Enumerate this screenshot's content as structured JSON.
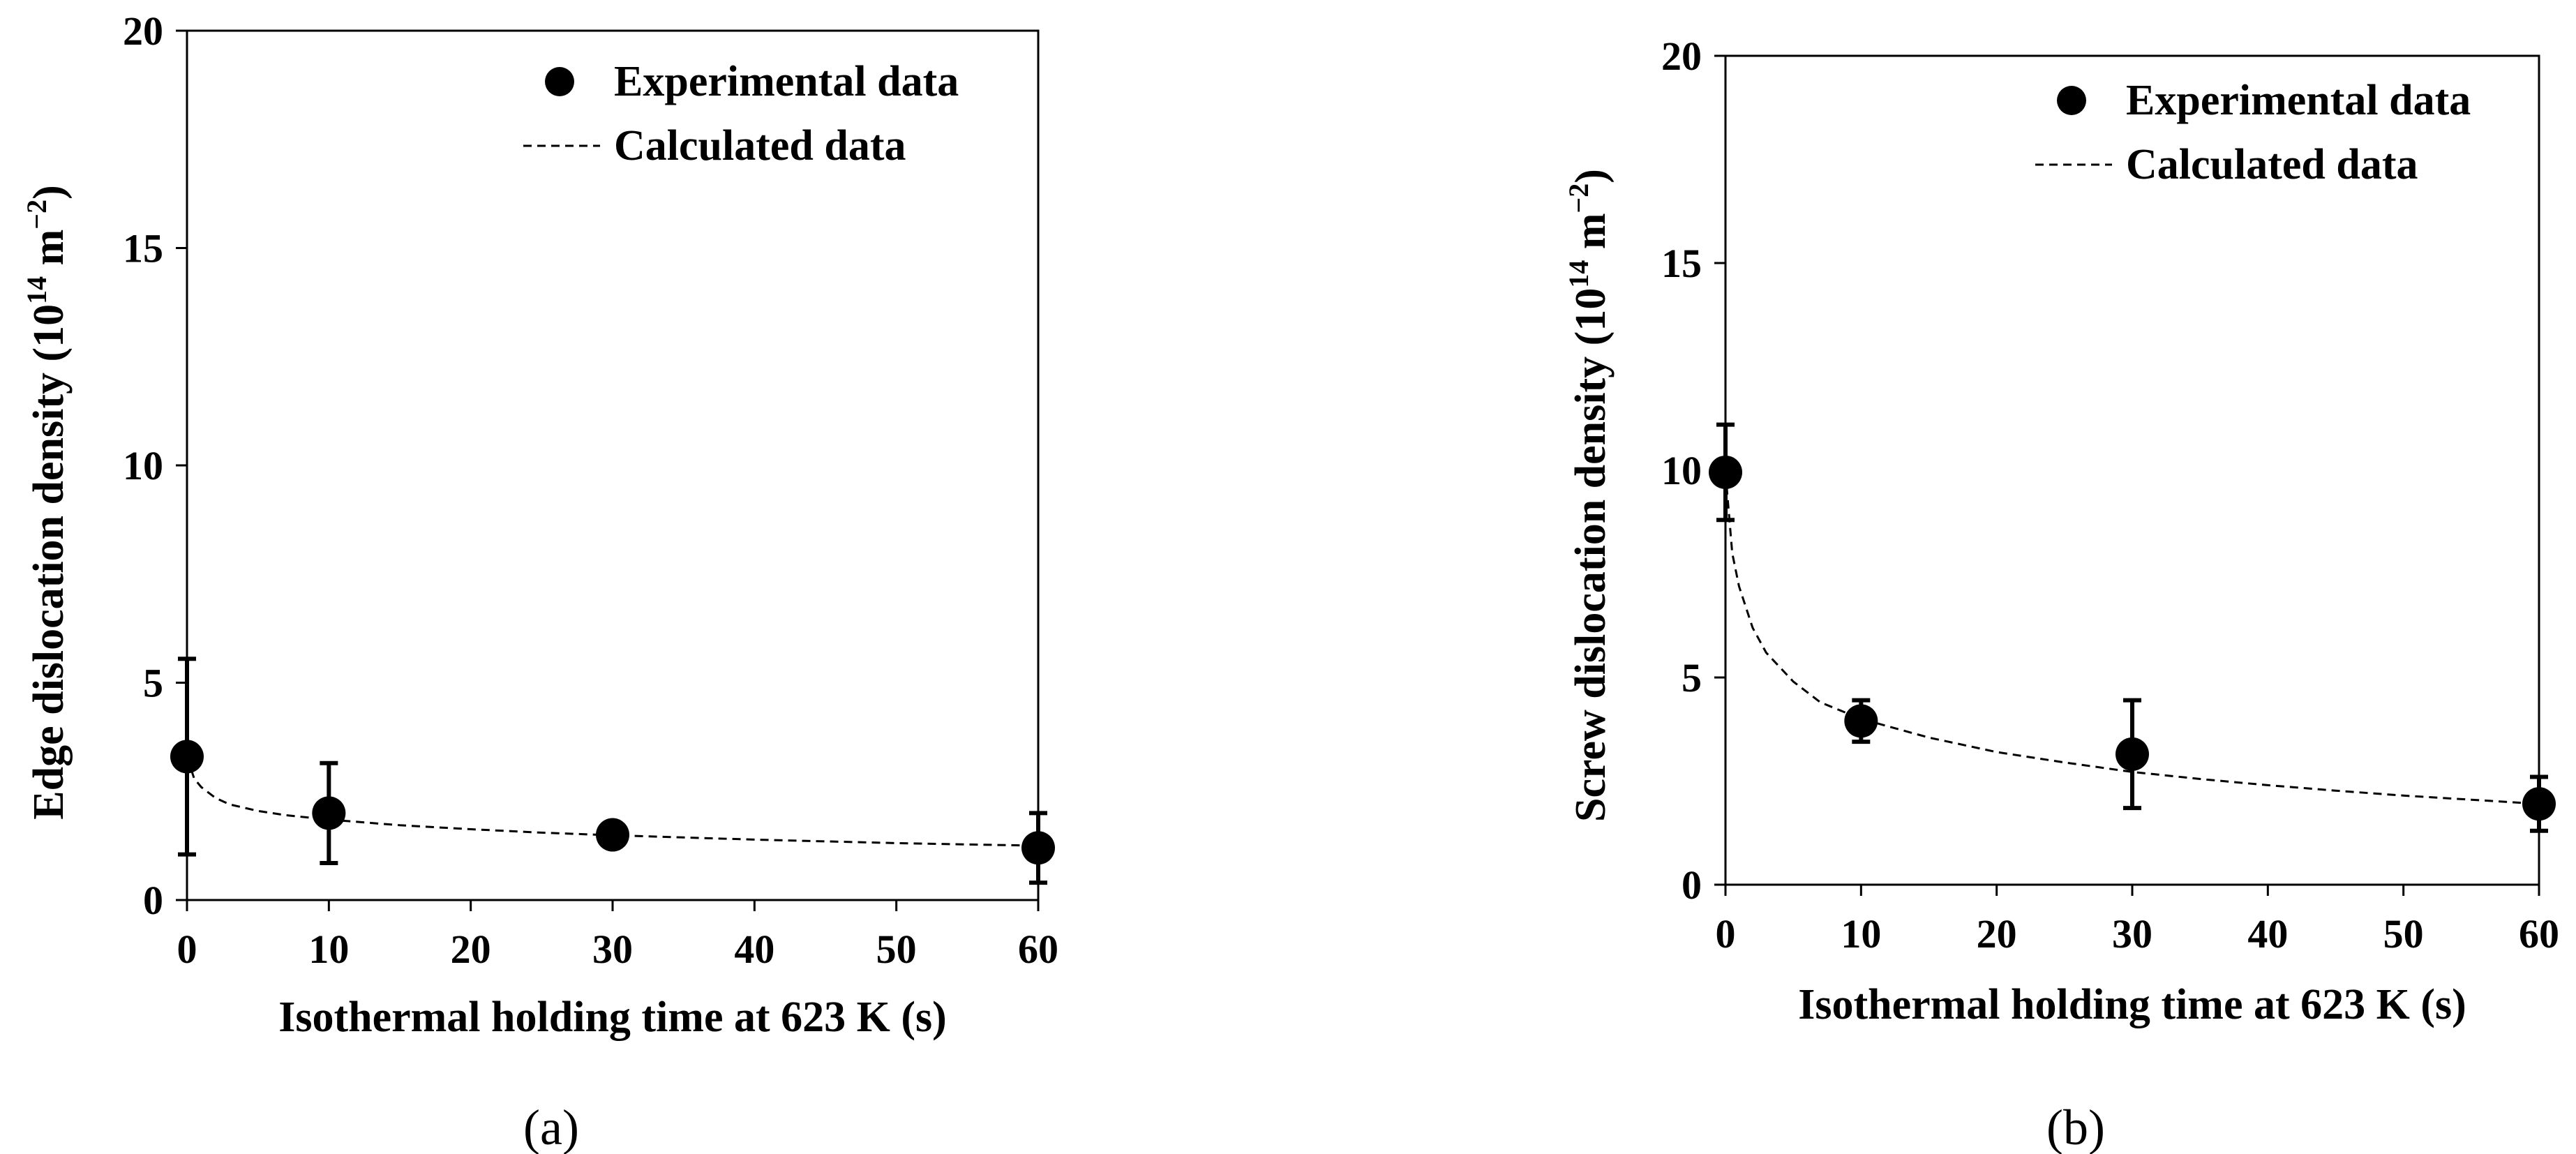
{
  "chart_data": [
    {
      "type": "scatter",
      "panel_label": "(a)",
      "xlabel": "Isothermal holding time at 623 K (s)",
      "ylabel": "Edge dislocation density",
      "yunit": {
        "base": "10",
        "exp": "14",
        "unit": " m",
        "unit_exp": "−2"
      },
      "xlim": [
        0,
        60
      ],
      "ylim": [
        0,
        20
      ],
      "xticks": [
        0,
        10,
        20,
        30,
        40,
        50,
        60
      ],
      "yticks": [
        0,
        5,
        10,
        15,
        20
      ],
      "legend": {
        "experimental": "Experimental data",
        "calculated": "Calculated data",
        "position": "top-right"
      },
      "experimental": {
        "x": [
          0,
          10,
          30,
          60
        ],
        "y": [
          3.3,
          2.0,
          1.5,
          1.2
        ],
        "err": [
          2.25,
          1.15,
          0,
          0.8
        ]
      },
      "calculated": {
        "x": [
          0,
          0.5,
          1,
          2,
          3,
          5,
          7,
          10,
          15,
          20,
          25,
          30,
          35,
          40,
          45,
          50,
          55,
          60
        ],
        "y": [
          3.3,
          2.8,
          2.6,
          2.35,
          2.2,
          2.05,
          1.95,
          1.85,
          1.72,
          1.63,
          1.55,
          1.49,
          1.44,
          1.39,
          1.35,
          1.31,
          1.28,
          1.25
        ]
      }
    },
    {
      "type": "scatter",
      "panel_label": "(b)",
      "xlabel": "Isothermal holding time at 623 K (s)",
      "ylabel": "Screw dislocation density",
      "yunit": {
        "base": "10",
        "exp": "14",
        "unit": " m",
        "unit_exp": "−2"
      },
      "xlim": [
        0,
        60
      ],
      "ylim": [
        0,
        20
      ],
      "xticks": [
        0,
        10,
        20,
        30,
        40,
        50,
        60
      ],
      "yticks": [
        0,
        5,
        10,
        15,
        20
      ],
      "legend": {
        "experimental": "Experimental data",
        "calculated": "Calculated data",
        "position": "top-right"
      },
      "experimental": {
        "x": [
          0,
          10,
          30,
          60
        ],
        "y": [
          9.95,
          3.95,
          3.15,
          1.95
        ],
        "err": [
          1.15,
          0.5,
          1.3,
          0.65
        ]
      },
      "calculated": {
        "x": [
          0,
          0.5,
          1,
          2,
          3,
          5,
          7,
          10,
          15,
          20,
          25,
          30,
          35,
          40,
          45,
          50,
          55,
          60
        ],
        "y": [
          9.95,
          8.0,
          7.2,
          6.2,
          5.6,
          4.9,
          4.4,
          4.0,
          3.55,
          3.2,
          2.95,
          2.72,
          2.55,
          2.4,
          2.27,
          2.15,
          2.05,
          1.95
        ]
      }
    }
  ]
}
